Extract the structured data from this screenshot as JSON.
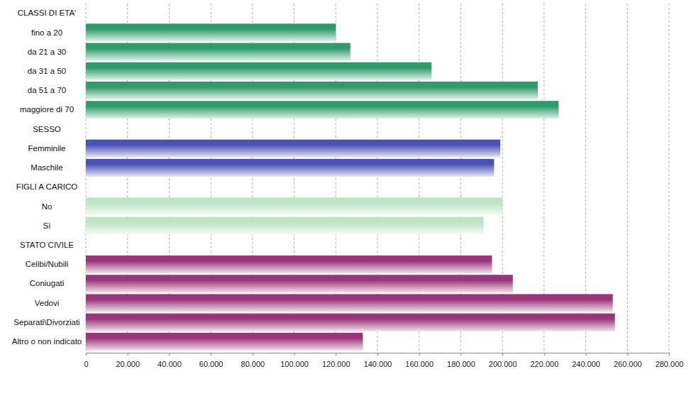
{
  "chart_data": {
    "type": "bar",
    "orientation": "horizontal",
    "grid": true,
    "categories": [
      "CLASSI DI ETA'",
      "fino a 20",
      "da 21 a 30",
      "da 31 a 50",
      "da 51 a 70",
      "maggiore di 70",
      "SESSO",
      "Femminile",
      "Maschile",
      "FIGLI A CARICO",
      "No",
      "Sì",
      "STATO CIVILE",
      "Celibi/Nubili",
      "Coniugati",
      "Vedovi",
      "Separati\\Divorziati",
      "Altro o non indicato"
    ],
    "values": [
      null,
      120000,
      127000,
      166000,
      217000,
      227000,
      null,
      199000,
      196000,
      null,
      200000,
      191000,
      null,
      195000,
      205000,
      253000,
      254000,
      133000
    ],
    "colors": [
      null,
      "#2f9a6c",
      "#2f9a6c",
      "#2f9a6c",
      "#2f9a6c",
      "#2f9a6c",
      null,
      "#4b52b3",
      "#4b52b3",
      null,
      "#bfe3c6",
      "#bfe3c6",
      null,
      "#9a3579",
      "#9a3579",
      "#9a3579",
      "#9a3579",
      "#9a3579"
    ],
    "xlim": [
      0,
      280000
    ],
    "xticks": [
      0,
      {
        "value": 20000,
        "label": "20.000"
      },
      {
        "value": 40000,
        "label": "40.000"
      },
      {
        "value": 60000,
        "label": "60.000"
      },
      {
        "value": 80000,
        "label": "80.000"
      },
      {
        "value": 100000,
        "label": "100.000"
      },
      {
        "value": 120000,
        "label": "120.000"
      },
      {
        "value": 140000,
        "label": "140.000"
      },
      {
        "value": 160000,
        "label": "160.000"
      },
      {
        "value": 180000,
        "label": "180.000"
      },
      {
        "value": 200000,
        "label": "200.000"
      },
      {
        "value": 220000,
        "label": "220.000"
      },
      {
        "value": 240000,
        "label": "240.000"
      },
      {
        "value": 260000,
        "label": "260.000"
      },
      {
        "value": 280000,
        "label": "280.000"
      }
    ]
  }
}
